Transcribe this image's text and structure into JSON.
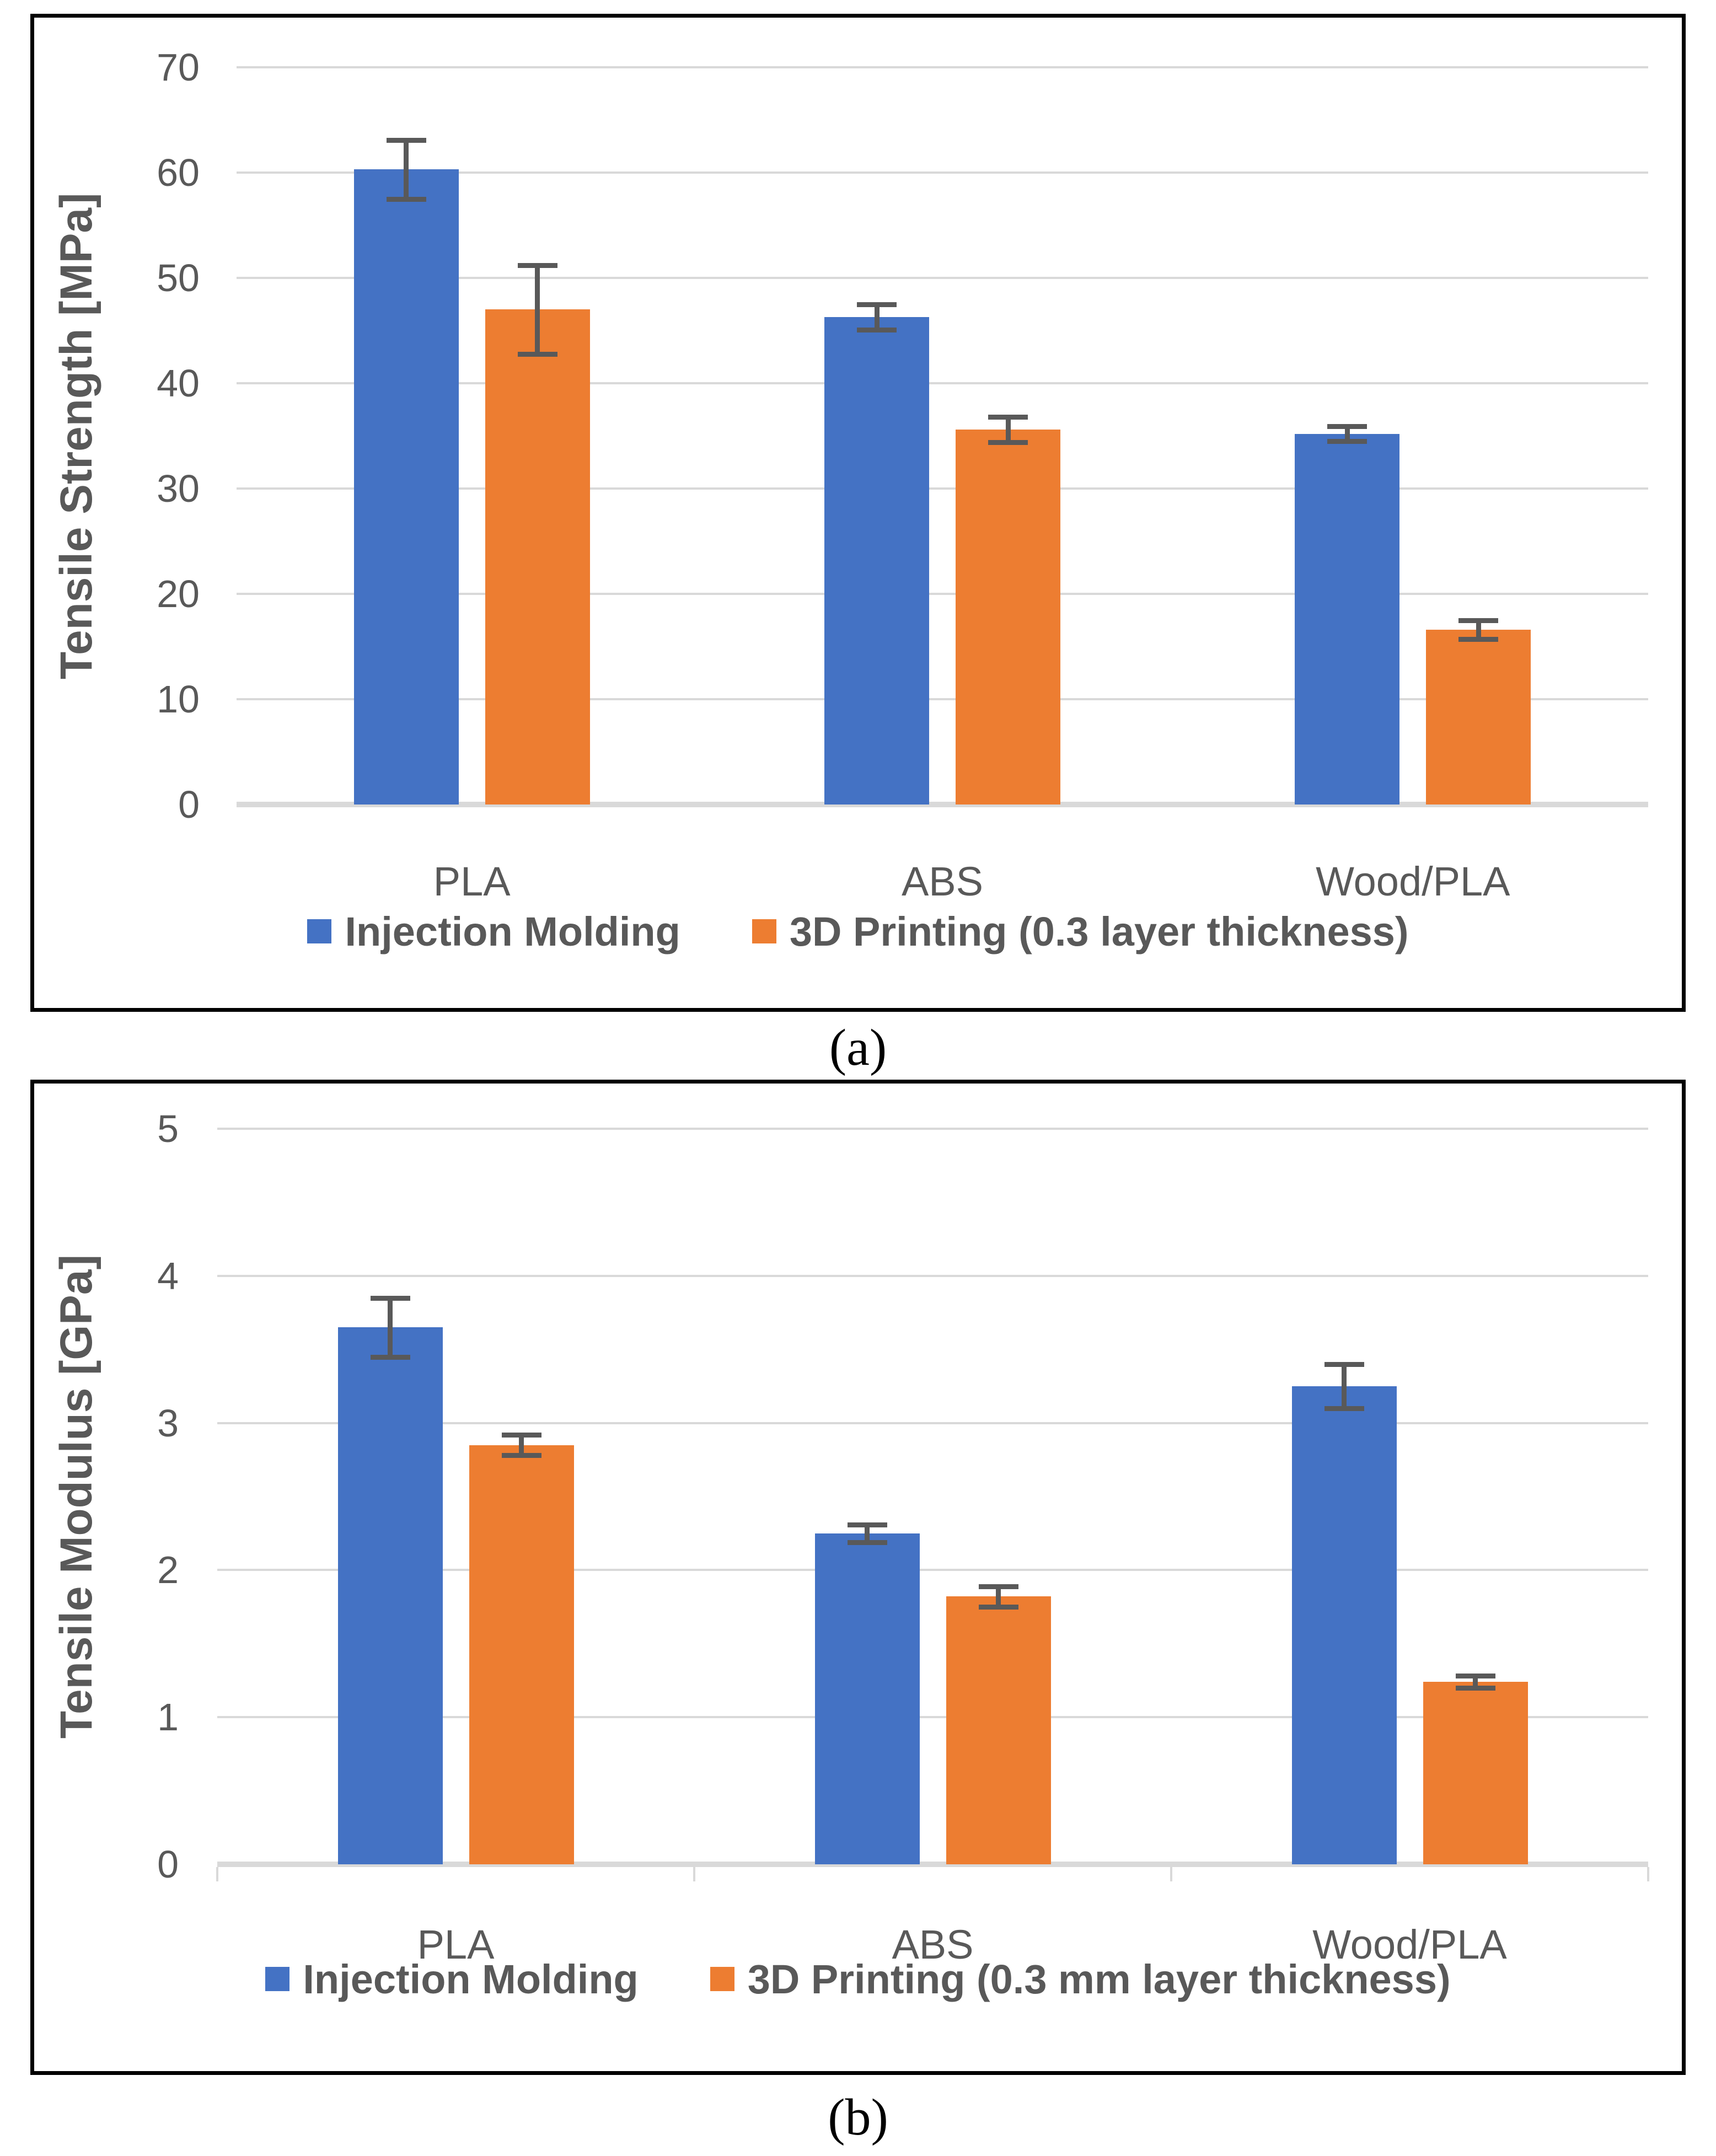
{
  "captions": {
    "a": "(a)",
    "b": "(b)"
  },
  "colors": {
    "series_blue": "#4472C4",
    "series_orange": "#ED7D31",
    "gridline": "#D9D9D9",
    "axis_line": "#D9D9D9",
    "error_bar": "#595959",
    "text": "#595959",
    "panel_border": "#000000"
  },
  "chart_data": [
    {
      "type": "bar",
      "panel": "a",
      "ylabel": "Tensile Strength [MPa]",
      "xlabel": "",
      "categories": [
        "PLA",
        "ABS",
        "Wood/PLA"
      ],
      "ylim": [
        0,
        70
      ],
      "yticks": [
        0,
        10,
        20,
        30,
        40,
        50,
        60,
        70
      ],
      "grid": true,
      "legend_position": "bottom",
      "series": [
        {
          "name": "Injection Molding",
          "color": "#4472C4",
          "values": [
            60.3,
            46.3,
            35.2
          ],
          "errors": [
            2.8,
            1.2,
            0.7
          ]
        },
        {
          "name": "3D Printing (0.3 layer thickness)",
          "color": "#ED7D31",
          "values": [
            47.0,
            35.6,
            16.6
          ],
          "errors": [
            4.2,
            1.2,
            0.9
          ]
        }
      ]
    },
    {
      "type": "bar",
      "panel": "b",
      "ylabel": "Tensile Modulus [GPa]",
      "xlabel": "",
      "categories": [
        "PLA",
        "ABS",
        "Wood/PLA"
      ],
      "ylim": [
        0,
        5
      ],
      "yticks": [
        0,
        1,
        2,
        3,
        4,
        5
      ],
      "grid": true,
      "legend_position": "bottom",
      "series": [
        {
          "name": "Injection Molding",
          "color": "#4472C4",
          "values": [
            3.65,
            2.25,
            3.25
          ],
          "errors": [
            0.2,
            0.06,
            0.15
          ]
        },
        {
          "name": "3D Printing (0.3 mm layer thickness)",
          "color": "#ED7D31",
          "values": [
            2.85,
            1.82,
            1.24
          ],
          "errors": [
            0.07,
            0.07,
            0.04
          ]
        }
      ]
    }
  ]
}
